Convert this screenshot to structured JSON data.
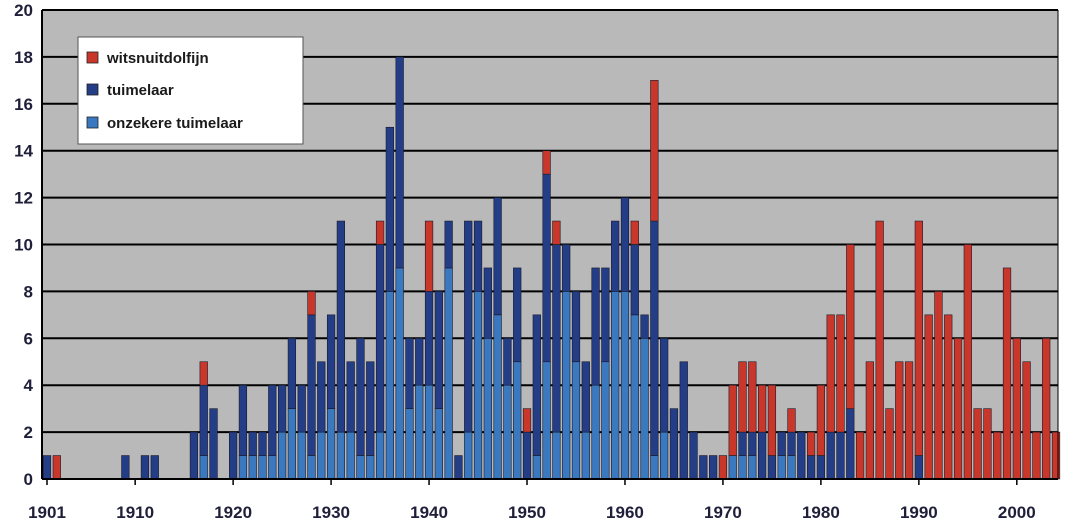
{
  "colors": {
    "witsnuitdolfijn": "#c9372b",
    "tuimelaar": "#233d86",
    "onzekere_tuimelaar": "#3a78c0",
    "plot_background": "#b9b9b9",
    "gridline": "#000000"
  },
  "chart_data": {
    "type": "bar",
    "stacked": true,
    "title": "",
    "xlabel": "",
    "ylabel": "",
    "ylim": [
      0,
      20
    ],
    "yticks": [
      0,
      2,
      4,
      6,
      8,
      10,
      12,
      14,
      16,
      18,
      20
    ],
    "xtick_labels": [
      "1901",
      "1910",
      "1920",
      "1930",
      "1940",
      "1950",
      "1960",
      "1970",
      "1980",
      "1990",
      "2000"
    ],
    "grid": true,
    "legend_position": "top-left",
    "x": [
      1901,
      1902,
      1903,
      1904,
      1905,
      1906,
      1907,
      1908,
      1909,
      1910,
      1911,
      1912,
      1913,
      1914,
      1915,
      1916,
      1917,
      1918,
      1919,
      1920,
      1921,
      1922,
      1923,
      1924,
      1925,
      1926,
      1927,
      1928,
      1929,
      1930,
      1931,
      1932,
      1933,
      1934,
      1935,
      1936,
      1937,
      1938,
      1939,
      1940,
      1941,
      1942,
      1943,
      1944,
      1945,
      1946,
      1947,
      1948,
      1949,
      1950,
      1951,
      1952,
      1953,
      1954,
      1955,
      1956,
      1957,
      1958,
      1959,
      1960,
      1961,
      1962,
      1963,
      1964,
      1965,
      1966,
      1967,
      1968,
      1969,
      1970,
      1971,
      1972,
      1973,
      1974,
      1975,
      1976,
      1977,
      1978,
      1979,
      1980,
      1981,
      1982,
      1983,
      1984,
      1985,
      1986,
      1987,
      1988,
      1989,
      1990,
      1991,
      1992,
      1993,
      1994,
      1995,
      1996,
      1997,
      1998,
      1999,
      2000,
      2001,
      2002,
      2003,
      2004
    ],
    "series": [
      {
        "name": "onzekere tuimelaar",
        "values": [
          0,
          0,
          0,
          0,
          0,
          0,
          0,
          0,
          0,
          0,
          0,
          0,
          0,
          0,
          0,
          0,
          1,
          0,
          0,
          0,
          1,
          1,
          1,
          1,
          2,
          3,
          2,
          1,
          2,
          3,
          2,
          2,
          1,
          1,
          2,
          8,
          9,
          3,
          4,
          4,
          3,
          9,
          0,
          2,
          8,
          6,
          7,
          4,
          5,
          0,
          1,
          5,
          2,
          8,
          5,
          2,
          4,
          5,
          8,
          8,
          7,
          6,
          1,
          2,
          0,
          0,
          0,
          0,
          0,
          0,
          1,
          1,
          1,
          0,
          0,
          1,
          1,
          0,
          0,
          0,
          0,
          0,
          0,
          0,
          0,
          0,
          0,
          0,
          0,
          0,
          0,
          0,
          0,
          0,
          0,
          0,
          0,
          0,
          0,
          0,
          0,
          0,
          0,
          0
        ]
      },
      {
        "name": "tuimelaar",
        "values": [
          1,
          0,
          0,
          0,
          0,
          0,
          0,
          0,
          1,
          0,
          1,
          1,
          0,
          0,
          0,
          2,
          3,
          3,
          0,
          2,
          3,
          1,
          1,
          3,
          2,
          3,
          2,
          6,
          3,
          4,
          9,
          3,
          5,
          4,
          8,
          7,
          9,
          3,
          2,
          4,
          5,
          2,
          1,
          9,
          3,
          3,
          5,
          2,
          4,
          2,
          6,
          8,
          8,
          2,
          3,
          3,
          5,
          4,
          3,
          4,
          3,
          1,
          10,
          4,
          3,
          5,
          2,
          1,
          1,
          0,
          0,
          1,
          1,
          2,
          1,
          1,
          1,
          2,
          1,
          1,
          2,
          2,
          3,
          0,
          0,
          0,
          0,
          0,
          0,
          1,
          0,
          0,
          0,
          0,
          0,
          0,
          0,
          0,
          0,
          0,
          0,
          0,
          0,
          0
        ],
        "note_source": "visual estimate"
      },
      {
        "name": "witsnuitdolfijn",
        "values": [
          0,
          1,
          0,
          0,
          0,
          0,
          0,
          0,
          0,
          0,
          0,
          0,
          0,
          0,
          0,
          0,
          1,
          0,
          0,
          0,
          0,
          0,
          0,
          0,
          0,
          0,
          0,
          1,
          0,
          0,
          0,
          0,
          0,
          0,
          1,
          0,
          0,
          0,
          0,
          3,
          0,
          0,
          0,
          0,
          0,
          0,
          0,
          0,
          0,
          1,
          0,
          1,
          1,
          0,
          0,
          0,
          0,
          0,
          0,
          0,
          1,
          0,
          6,
          0,
          0,
          0,
          0,
          0,
          0,
          1,
          3,
          3,
          3,
          2,
          3,
          0,
          1,
          0,
          1,
          3,
          5,
          5,
          7,
          2,
          5,
          11,
          3,
          5,
          5,
          10,
          7,
          8,
          7,
          6,
          10,
          3,
          3,
          2,
          9,
          6,
          5,
          2,
          6,
          2
        ]
      }
    ]
  }
}
